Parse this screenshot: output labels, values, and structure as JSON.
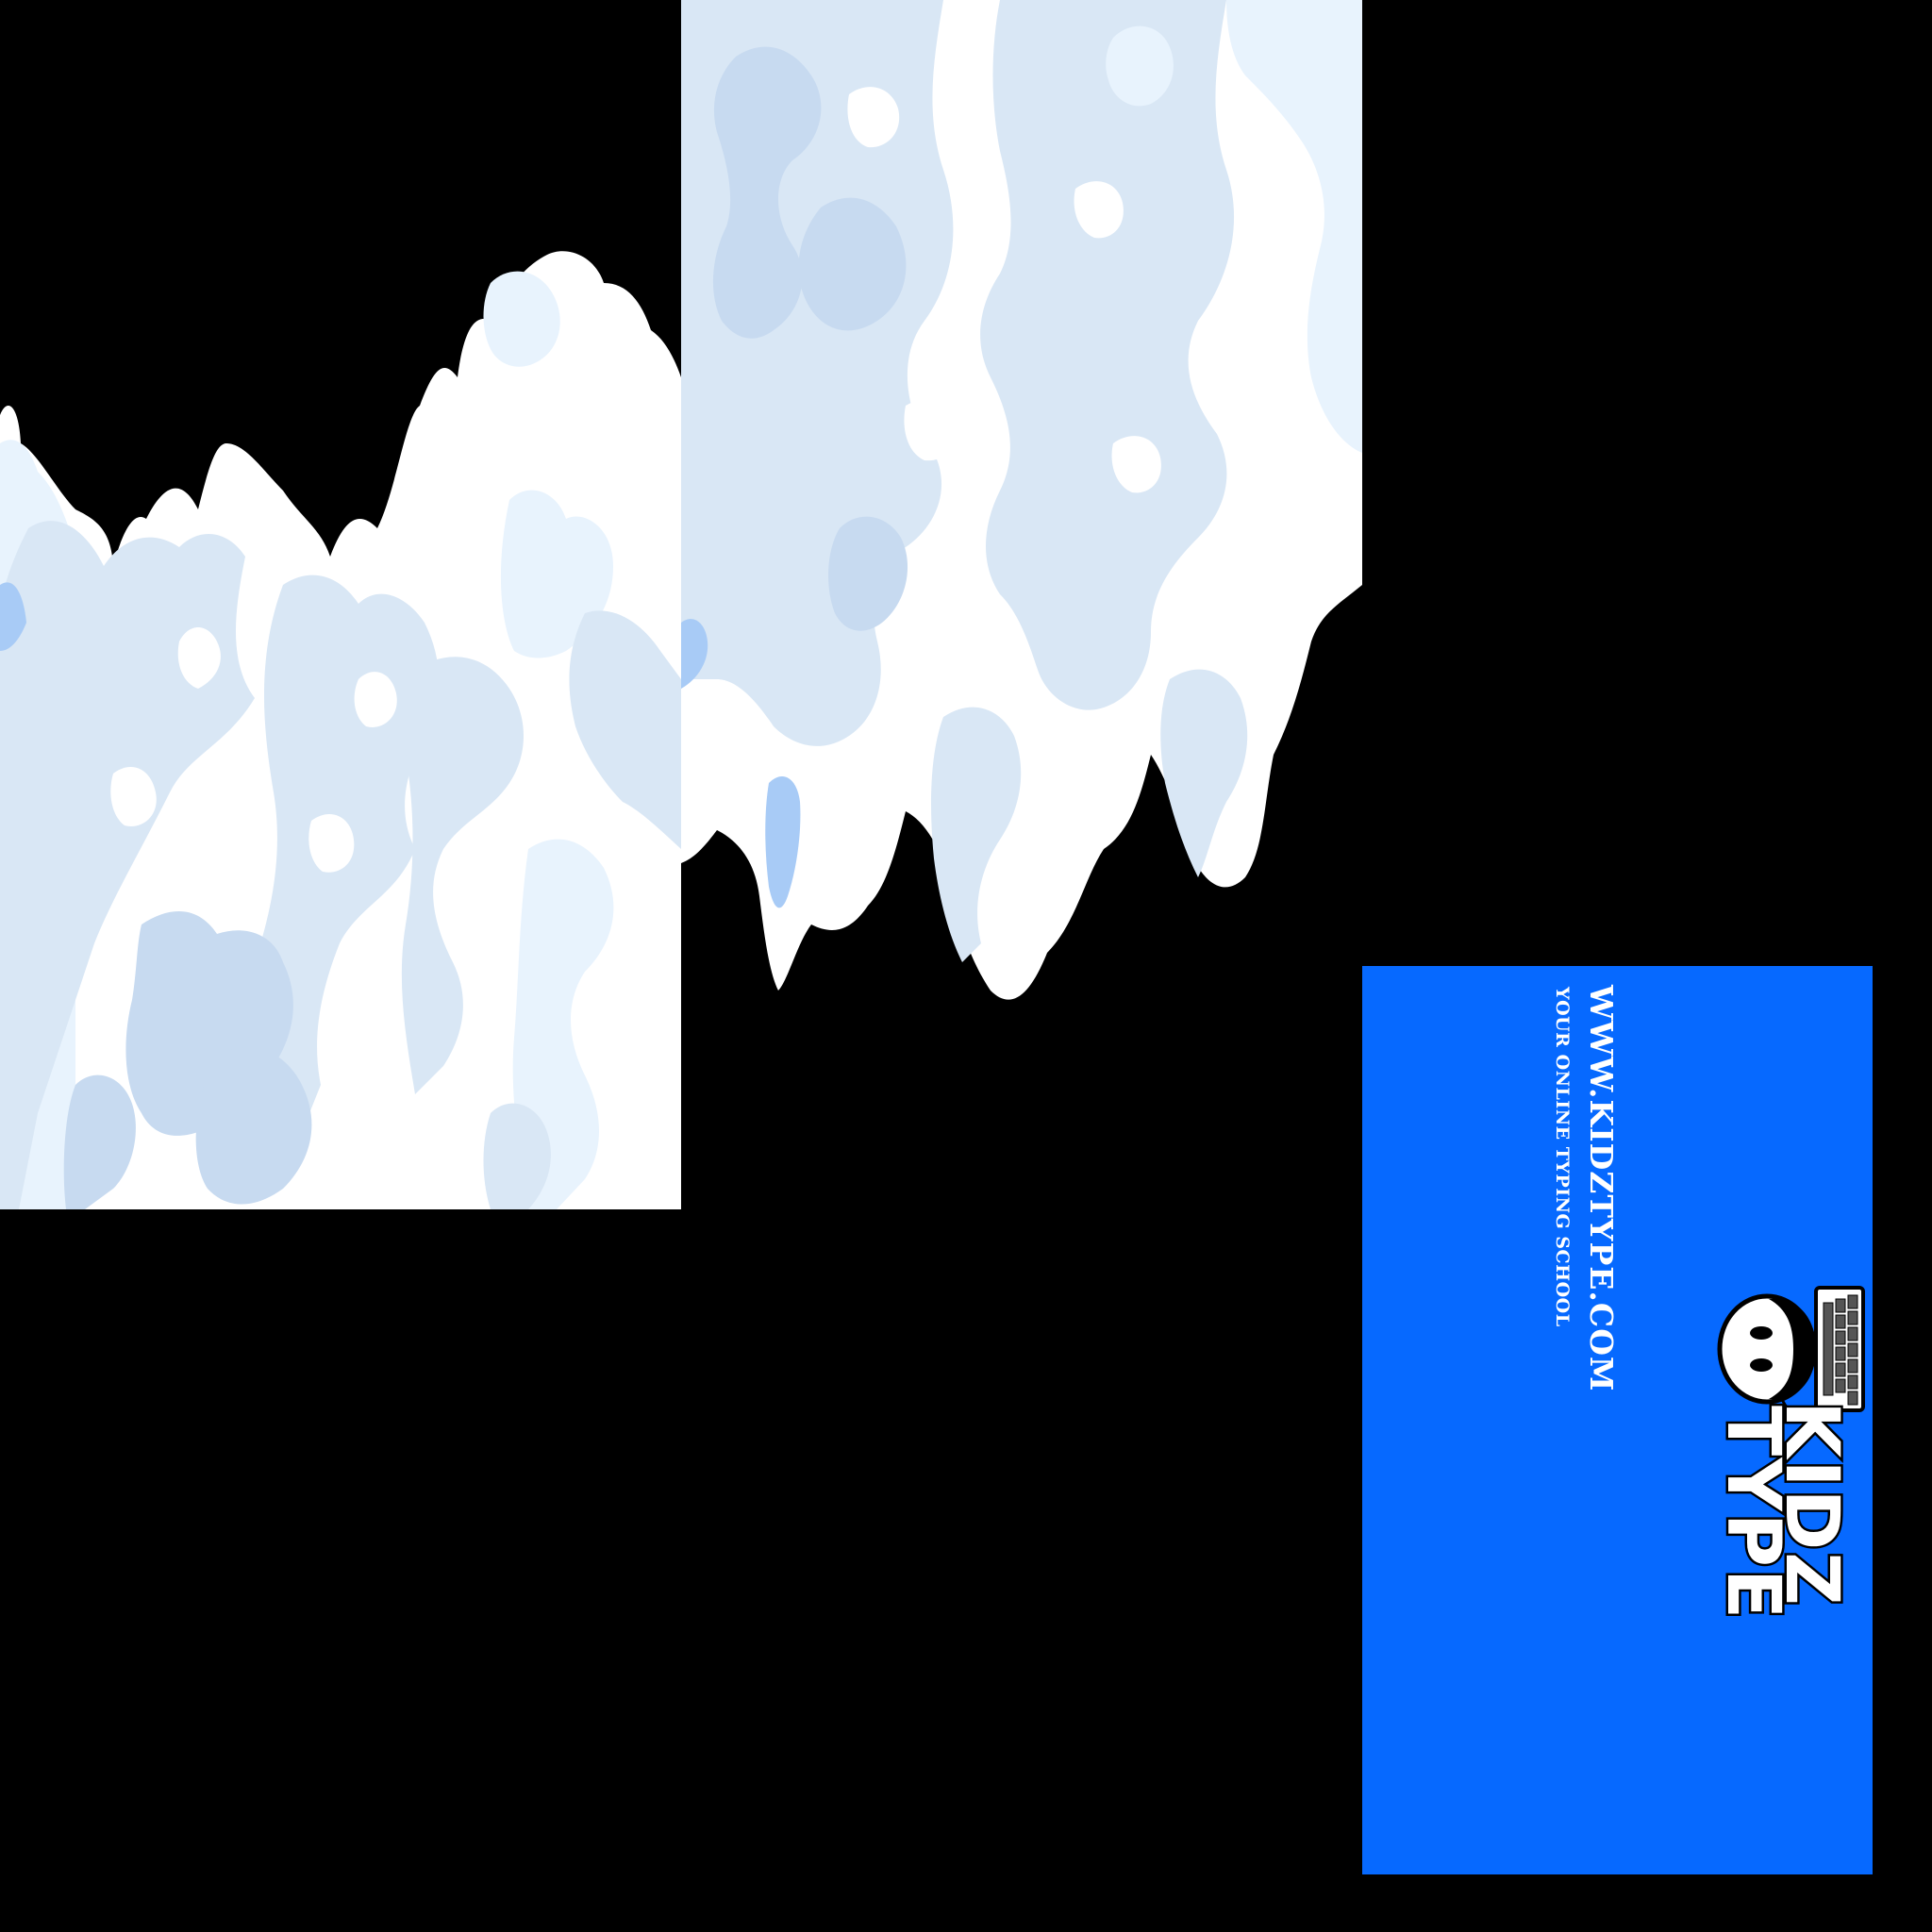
{
  "brand": {
    "logo_line1": "KIDZ",
    "logo_line2": "TYPE",
    "url": "WWW.KIDZTYPE.COM",
    "tagline": "YOUR ONLINE TYPING SCHOOL"
  },
  "colors": {
    "background": "#000000",
    "card": "#0669ff",
    "cloud_white": "#ffffff",
    "cloud_light": "#e8f3fd",
    "cloud_mid": "#d9e7f5",
    "cloud_shade": "#c7daf0",
    "cloud_blue": "#a8cbf6"
  },
  "icons": [
    "cloud-sprite",
    "kid-face-logo-icon",
    "keyboard-icon"
  ]
}
